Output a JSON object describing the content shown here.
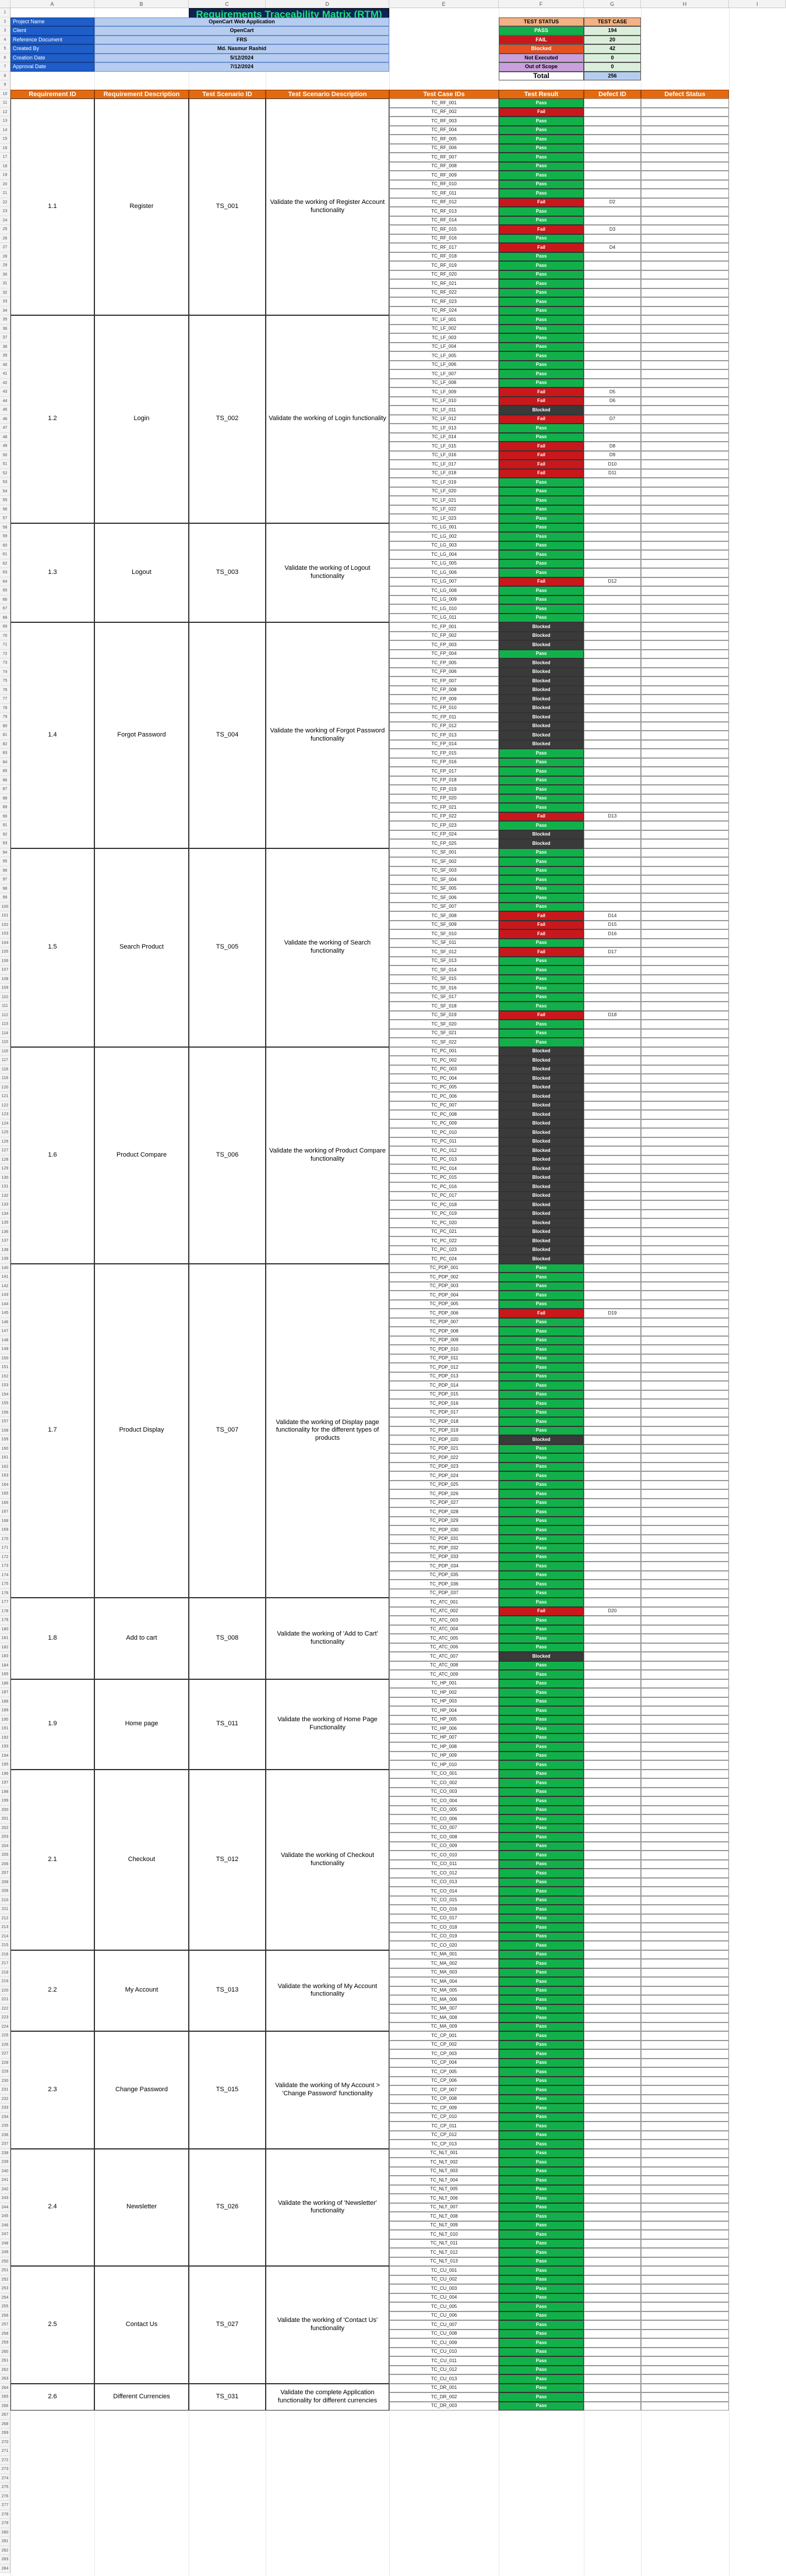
{
  "spreadsheet": {
    "column_letters": [
      "A",
      "B",
      "C",
      "D",
      "E",
      "F",
      "G",
      "H",
      "I"
    ],
    "title": "Requirements Traceability Matrix (RTM)",
    "project_info": [
      {
        "label": "Project Name",
        "value": "OpenCart Web Application"
      },
      {
        "label": "Client",
        "value": "OpenCart"
      },
      {
        "label": "Reference Document",
        "value": "FRS"
      },
      {
        "label": "Created By",
        "value": "Md. Nasmur Rashid"
      },
      {
        "label": "Creation Date",
        "value": "5/12/2024"
      },
      {
        "label": "Approval Date",
        "value": "7/12/2024"
      }
    ],
    "summary": {
      "header_status": "TEST STATUS",
      "header_count": "TEST CASE",
      "rows": [
        {
          "status": "PASS",
          "count": "194",
          "color": "#12b04a"
        },
        {
          "status": "FAIL",
          "count": "20",
          "color": "#c8181b"
        },
        {
          "status": "Blocked",
          "count": "42",
          "color": "#e65020"
        },
        {
          "status": "Not Executed",
          "count": "0",
          "color": "#c9a0dc"
        },
        {
          "status": "Out of Scope",
          "count": "0",
          "color": "#c9a0dc"
        }
      ],
      "total_label": "Total",
      "total_value": "256"
    },
    "table_headers": [
      "Requirement ID",
      "Requirement Description",
      "Test Scenario ID",
      "Test Scenario Description",
      "Test Case IDs",
      "Test Result",
      "Defect ID",
      "Defect Status"
    ],
    "requirements": [
      {
        "req_id": "1.1",
        "req_desc": "Register",
        "scenario_id": "TS_001",
        "scenario_desc": "Validate the working of Register Account functionality",
        "prefix": "TC_RF_",
        "count": 24,
        "fails": {
          "2": "",
          "12": "D2",
          "15": "D3",
          "17": "D4"
        },
        "blocked": []
      },
      {
        "req_id": "1.2",
        "req_desc": "Login",
        "scenario_id": "TS_002",
        "scenario_desc": "Validate the working of Login functionality",
        "prefix": "TC_LF_",
        "count": 23,
        "fails": {
          "9": "D5",
          "10": "D6",
          "12": "D7",
          "15": "D8",
          "16": "D9",
          "17": "D10",
          "18": "D11"
        },
        "blocked": [
          11
        ]
      },
      {
        "req_id": "1.3",
        "req_desc": "Logout",
        "scenario_id": "TS_003",
        "scenario_desc": "Validate the working of Logout functionality",
        "prefix": "TC_LG_",
        "count": 11,
        "fails": {
          "7": "D12"
        },
        "blocked": []
      },
      {
        "req_id": "1.4",
        "req_desc": "Forgot Password",
        "scenario_id": "TS_004",
        "scenario_desc": "Validate the working of Forgot Password functionality",
        "prefix": "TC_FP_",
        "count": 25,
        "fails": {
          "22": "D13"
        },
        "blocked": [
          1,
          2,
          3,
          5,
          6,
          7,
          8,
          9,
          10,
          11,
          12,
          13,
          14,
          24,
          25
        ]
      },
      {
        "req_id": "1.5",
        "req_desc": "Search Product",
        "scenario_id": "TS_005",
        "scenario_desc": "Validate the working of Search functionality",
        "prefix": "TC_SF_",
        "count": 22,
        "fails": {
          "8": "D14",
          "9": "D15",
          "10": "D16",
          "12": "D17",
          "19": "D18"
        },
        "blocked": []
      },
      {
        "req_id": "1.6",
        "req_desc": "Product Compare",
        "scenario_id": "TS_006",
        "scenario_desc": "Validate the working of Product Compare functionality",
        "prefix": "TC_PC_",
        "count": 24,
        "fails": {},
        "blocked": [
          1,
          2,
          3,
          4,
          5,
          6,
          7,
          8,
          9,
          10,
          11,
          12,
          13,
          14,
          15,
          16,
          17,
          18,
          19,
          20,
          21,
          22,
          23,
          24
        ]
      },
      {
        "req_id": "1.7",
        "req_desc": "Product Display",
        "scenario_id": "TS_007",
        "scenario_desc": "Validate the working of Display page functionality for the different types of products",
        "prefix": "TC_PDP_",
        "count": 37,
        "fails": {
          "6": "D19"
        },
        "blocked": [
          20
        ]
      },
      {
        "req_id": "1.8",
        "req_desc": "Add to cart",
        "scenario_id": "TS_008",
        "scenario_desc": "Validate the working of 'Add to Cart' functionality",
        "prefix": "TC_ATC_",
        "count": 9,
        "fails": {
          "2": "D20"
        },
        "blocked": [
          7
        ]
      },
      {
        "req_id": "1.9",
        "req_desc": "Home page",
        "scenario_id": "TS_011",
        "scenario_desc": "Validate the working of Home Page Functionality",
        "prefix": "TC_HP_",
        "count": 10,
        "fails": {},
        "blocked": []
      },
      {
        "req_id": "2.1",
        "req_desc": "Checkout",
        "scenario_id": "TS_012",
        "scenario_desc": "Validate the working of Checkout functionality",
        "prefix": "TC_CO_",
        "count": 20,
        "fails": {},
        "blocked": []
      },
      {
        "req_id": "2.2",
        "req_desc": "My Account",
        "scenario_id": "TS_013",
        "scenario_desc": "Validate the working of My Account functionality",
        "prefix": "TC_MA_",
        "count": 9,
        "fails": {},
        "blocked": []
      },
      {
        "req_id": "2.3",
        "req_desc": "Change Password",
        "scenario_id": "TS_015",
        "scenario_desc": "Validate the working of My Account > 'Change Password' functionality",
        "prefix": "TC_CP_",
        "count": 13,
        "fails": {},
        "blocked": []
      },
      {
        "req_id": "2.4",
        "req_desc": "Newsletter",
        "scenario_id": "TS_026",
        "scenario_desc": "Validate the working of 'Newsletter' functionality",
        "prefix": "TC_NLT_",
        "count": 13,
        "fails": {},
        "blocked": []
      },
      {
        "req_id": "2.5",
        "req_desc": "Contact Us",
        "scenario_id": "TS_027",
        "scenario_desc": "Validate the working of 'Contact Us' functionality",
        "prefix": "TC_CU_",
        "count": 13,
        "fails": {},
        "blocked": []
      },
      {
        "req_id": "2.6",
        "req_desc": "Different Currencies",
        "scenario_id": "TS_031",
        "scenario_desc": "Validate the complete Application functionality for different currencies",
        "prefix": "TC_DR_",
        "count": 3,
        "fails": {},
        "blocked": []
      }
    ],
    "result_labels": {
      "pass": "Pass",
      "fail": "Fail",
      "blocked": "Blocked"
    },
    "colors": {
      "accent": "#e36a10",
      "title_bg": "#0d2356",
      "title_text": "#1ee07a",
      "info_label": "#1f5dc8",
      "info_value": "#b7cdf0",
      "pass": "#12b04a",
      "fail": "#c8181b",
      "blocked": "#3a3a3a"
    }
  }
}
